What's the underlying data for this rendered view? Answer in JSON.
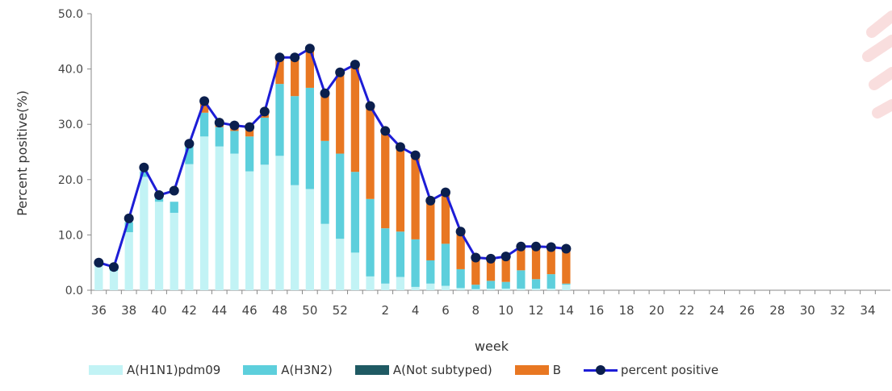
{
  "chart_data": {
    "type": "bar",
    "stacked": true,
    "xlabel": "week",
    "ylabel": "Percent positive(%)",
    "ylim": [
      0,
      50
    ],
    "yticks": [
      "0.0",
      "10.0",
      "20.0",
      "30.0",
      "40.0",
      "50.0"
    ],
    "categories": [
      "36",
      "37",
      "38",
      "39",
      "40",
      "41",
      "42",
      "43",
      "44",
      "45",
      "46",
      "47",
      "48",
      "49",
      "50",
      "51",
      "52",
      "53",
      "1",
      "2",
      "3",
      "4",
      "5",
      "6",
      "7",
      "8",
      "9",
      "10",
      "11",
      "12",
      "13",
      "14",
      "15",
      "16",
      "17",
      "18",
      "19",
      "20",
      "21",
      "22",
      "23",
      "24",
      "25",
      "26",
      "27",
      "28",
      "29",
      "30",
      "31",
      "32",
      "33",
      "34",
      "35"
    ],
    "xtick_labels": [
      "36",
      "38",
      "40",
      "42",
      "44",
      "46",
      "48",
      "50",
      "52",
      "2",
      "4",
      "6",
      "8",
      "10",
      "12",
      "14",
      "16",
      "18",
      "20",
      "22",
      "24",
      "26",
      "28",
      "30",
      "32",
      "34"
    ],
    "series": [
      {
        "name": "A(H1N1)pdm09",
        "color": "#c2f3f5",
        "values": [
          4.5,
          3.5,
          10.5,
          20.5,
          16.0,
          14.0,
          22.8,
          27.8,
          26.0,
          24.7,
          21.5,
          22.7,
          24.3,
          19.0,
          18.3,
          12.0,
          9.3,
          6.8,
          2.5,
          1.2,
          2.4,
          0.6,
          1.2,
          0.8,
          0.4,
          0.2,
          0.3,
          0.3,
          0.3,
          0.3,
          0.3,
          1.0,
          null,
          null,
          null,
          null,
          null,
          null,
          null,
          null,
          null,
          null,
          null,
          null,
          null,
          null,
          null,
          null,
          null,
          null,
          null,
          null,
          null
        ]
      },
      {
        "name": "A(H3N2)",
        "color": "#5dcfdc",
        "values": [
          0.5,
          0.7,
          1.8,
          1.0,
          0.8,
          2.0,
          3.2,
          4.3,
          3.5,
          4.1,
          6.3,
          8.5,
          13.0,
          16.1,
          18.3,
          15.0,
          15.4,
          14.6,
          14.0,
          10.0,
          8.2,
          8.6,
          4.2,
          7.6,
          3.4,
          0.8,
          1.4,
          1.2,
          3.3,
          1.7,
          2.6,
          0.2,
          null,
          null,
          null,
          null,
          null,
          null,
          null,
          null,
          null,
          null,
          null,
          null,
          null,
          null,
          null,
          null,
          null,
          null,
          null,
          null,
          null
        ]
      },
      {
        "name": "A(Not subtyped)",
        "color": "#1f5a63",
        "values": [
          0,
          0,
          0,
          0,
          0,
          0,
          0,
          0,
          0,
          0,
          0,
          0,
          0,
          0,
          0,
          0,
          0,
          0,
          0,
          0,
          0,
          0,
          0,
          0,
          0,
          0,
          0,
          0,
          0,
          0,
          0,
          0,
          null,
          null,
          null,
          null,
          null,
          null,
          null,
          null,
          null,
          null,
          null,
          null,
          null,
          null,
          null,
          null,
          null,
          null,
          null,
          null,
          null
        ]
      },
      {
        "name": "B",
        "color": "#e87722",
        "values": [
          0,
          0,
          0,
          0,
          0,
          0,
          0.4,
          1.9,
          0.7,
          1.1,
          1.7,
          1.2,
          4.8,
          7.3,
          7.3,
          8.7,
          14.7,
          19.4,
          16.8,
          17.6,
          15.3,
          15.2,
          11.0,
          9.3,
          6.8,
          4.9,
          4.0,
          4.6,
          4.3,
          6.0,
          4.9,
          6.4,
          null,
          null,
          null,
          null,
          null,
          null,
          null,
          null,
          null,
          null,
          null,
          null,
          null,
          null,
          null,
          null,
          null,
          null,
          null,
          null,
          null
        ]
      }
    ],
    "line": {
      "name": "percent positive",
      "color": "#1d1dd6",
      "marker_color": "#0b1f4d",
      "values": [
        5.0,
        4.2,
        13.0,
        22.2,
        17.2,
        18.0,
        26.5,
        34.2,
        30.3,
        29.8,
        29.5,
        32.3,
        42.1,
        42.1,
        43.7,
        35.6,
        39.4,
        40.8,
        33.3,
        28.8,
        25.9,
        24.4,
        16.2,
        17.7,
        10.6,
        5.9,
        5.7,
        6.1,
        7.9,
        7.9,
        7.8,
        7.5,
        null,
        null,
        null,
        null,
        null,
        null,
        null,
        null,
        null,
        null,
        null,
        null,
        null,
        null,
        null,
        null,
        null,
        null,
        null,
        null,
        null
      ]
    },
    "legend_position": "bottom",
    "grid": false
  }
}
